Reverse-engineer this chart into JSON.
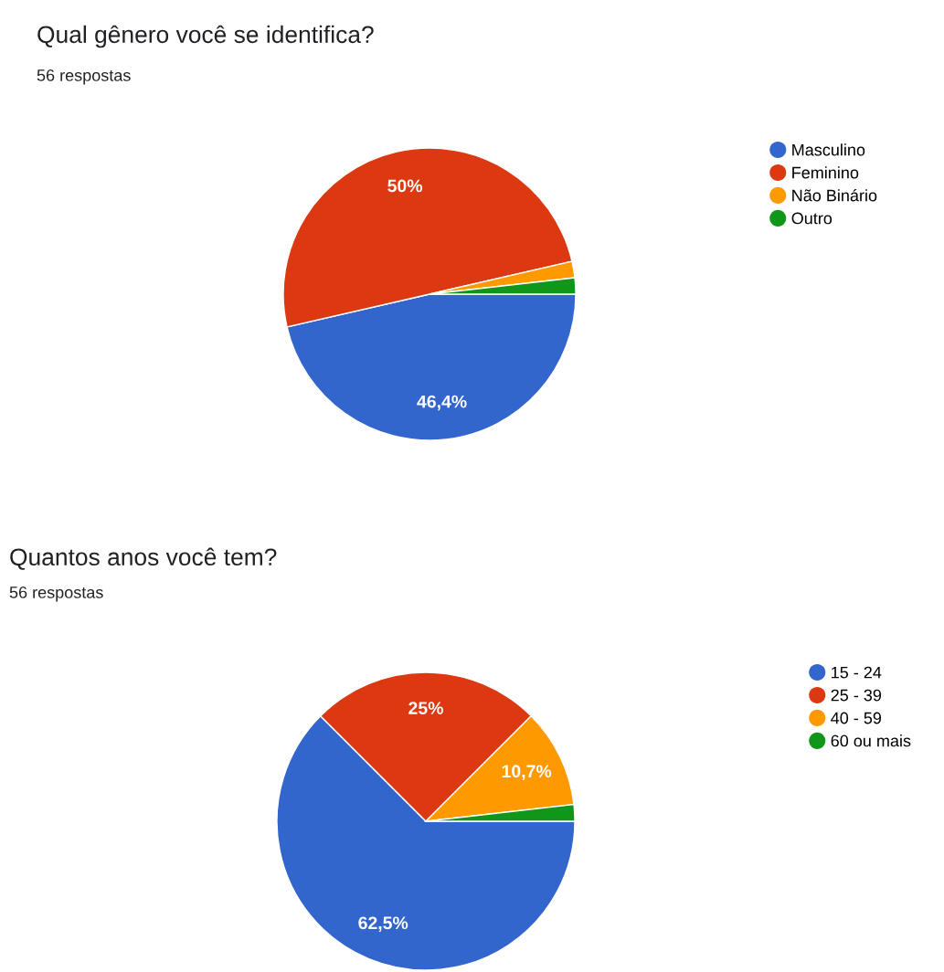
{
  "chart_data": [
    {
      "type": "pie",
      "title": "Qual gênero você se identifica?",
      "subtitle": "56 respostas",
      "categories": [
        "Masculino",
        "Feminino",
        "Não Binário",
        "Outro"
      ],
      "values": [
        46.4,
        50,
        1.8,
        1.8
      ],
      "colors": [
        "#3366cc",
        "#dc3912",
        "#ff9900",
        "#109618"
      ],
      "value_labels": [
        "46,4%",
        "50%",
        null,
        null
      ],
      "legend": "right"
    },
    {
      "type": "pie",
      "title": "Quantos anos você tem?",
      "subtitle": "56 respostas",
      "categories": [
        "15 - 24",
        "25 - 39",
        "40 - 59",
        "60 ou mais"
      ],
      "values": [
        62.5,
        25,
        10.7,
        1.8
      ],
      "colors": [
        "#3366cc",
        "#dc3912",
        "#ff9900",
        "#109618"
      ],
      "value_labels": [
        "62,5%",
        "25%",
        "10,7%",
        null
      ],
      "legend": "right"
    }
  ]
}
